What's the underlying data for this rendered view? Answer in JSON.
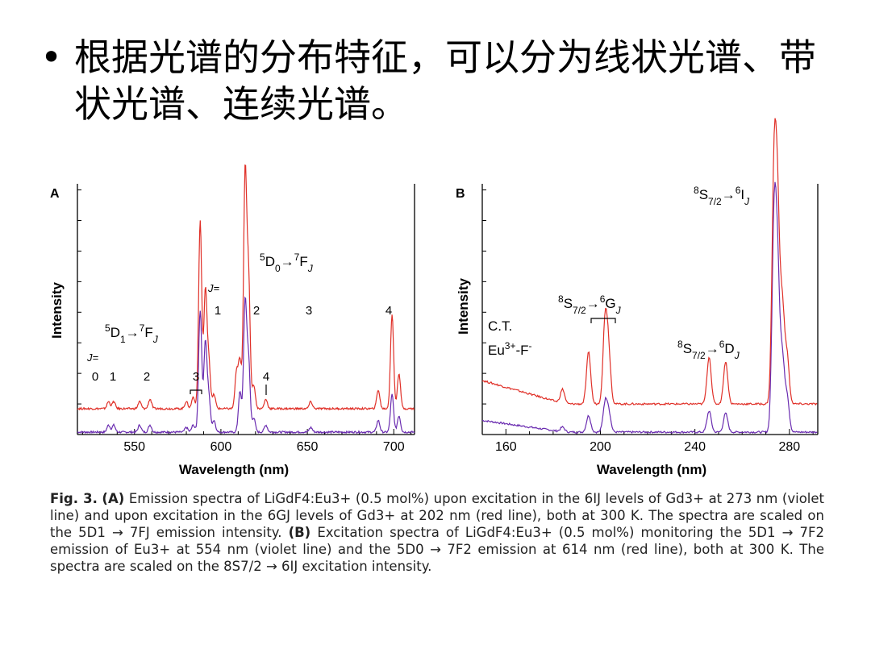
{
  "slide": {
    "bullet_marker": "•",
    "bullet_text": "根据光谱的分布特征，可以分为线状光谱、带状光谱、连续光谱。"
  },
  "colors": {
    "red": "#e03028",
    "violet": "#6a2cb0",
    "axis": "#000000"
  },
  "chart_data": [
    {
      "panel": "A",
      "type": "line",
      "xlabel": "Wavelength (nm)",
      "ylabel": "Intensity",
      "xlim": [
        517,
        712
      ],
      "ylim": [
        0,
        1
      ],
      "xticks": [
        550,
        600,
        650,
        700
      ],
      "series": [
        {
          "name": "violet line",
          "color": "#6a2cb0",
          "baseline": 0.0,
          "peaks": [
            [
              535,
              0.03
            ],
            [
              538,
              0.03
            ],
            [
              553,
              0.03
            ],
            [
              559,
              0.03
            ],
            [
              580,
              0.02
            ],
            [
              584,
              0.03
            ],
            [
              588,
              0.52
            ],
            [
              591,
              0.38
            ],
            [
              593,
              0.15
            ],
            [
              596,
              0.05
            ],
            [
              611,
              0.17
            ],
            [
              614,
              0.55
            ],
            [
              616,
              0.3
            ],
            [
              619,
              0.06
            ],
            [
              626,
              0.03
            ],
            [
              652,
              0.02
            ],
            [
              691,
              0.05
            ],
            [
              699,
              0.16
            ],
            [
              703,
              0.07
            ]
          ]
        },
        {
          "name": "red line",
          "color": "#e03028",
          "baseline": 0.1,
          "peaks": [
            [
              535,
              0.03
            ],
            [
              538,
              0.03
            ],
            [
              553,
              0.03
            ],
            [
              559,
              0.04
            ],
            [
              580,
              0.03
            ],
            [
              584,
              0.05
            ],
            [
              588,
              0.8
            ],
            [
              591,
              0.5
            ],
            [
              593,
              0.2
            ],
            [
              596,
              0.06
            ],
            [
              609,
              0.15
            ],
            [
              611,
              0.2
            ],
            [
              614,
              1.0
            ],
            [
              616,
              0.55
            ],
            [
              619,
              0.1
            ],
            [
              626,
              0.04
            ],
            [
              652,
              0.03
            ],
            [
              691,
              0.08
            ],
            [
              699,
              0.4
            ],
            [
              703,
              0.15
            ]
          ]
        }
      ],
      "annotations": {
        "t1_main": "5D1→7FJ",
        "t2_main": "5D0→7FJ",
        "j_eq": "J=",
        "j1": [
          "0",
          "1",
          "2",
          "3",
          "4"
        ],
        "j2": [
          "1",
          "2",
          "3",
          "4"
        ]
      }
    },
    {
      "panel": "B",
      "type": "line",
      "xlabel": "Wavelength (nm)",
      "ylabel": "Intensity",
      "xlim": [
        150,
        292
      ],
      "ylim": [
        0,
        1
      ],
      "xticks": [
        160,
        200,
        240,
        280
      ],
      "series": [
        {
          "name": "violet line",
          "color": "#6a2cb0",
          "baseline": 0.0,
          "peaks": [
            [
              184,
              0.02
            ],
            [
              195,
              0.07
            ],
            [
              202,
              0.12
            ],
            [
              203.5,
              0.08
            ],
            [
              246,
              0.09
            ],
            [
              253,
              0.08
            ],
            [
              273.5,
              0.85
            ],
            [
              275,
              0.62
            ],
            [
              277,
              0.3
            ],
            [
              279,
              0.15
            ]
          ]
        },
        {
          "name": "red line",
          "color": "#e03028",
          "baseline": 0.12,
          "peaks": [
            [
              184,
              0.06
            ],
            [
              195,
              0.22
            ],
            [
              202,
              0.35
            ],
            [
              203.5,
              0.2
            ],
            [
              246,
              0.2
            ],
            [
              253,
              0.18
            ],
            [
              273.5,
              0.95
            ],
            [
              275,
              0.75
            ],
            [
              277,
              0.4
            ],
            [
              279,
              0.2
            ]
          ]
        }
      ],
      "annotations": {
        "ct": "C.T.",
        "eu": "Eu3+-F-",
        "g": "8S7/2→6GJ",
        "d": "8S7/2→6DJ",
        "i": "8S7/2→6IJ"
      }
    }
  ],
  "caption": {
    "fig": "Fig. 3.",
    "A": "(A)",
    "part_a": " Emission spectra of LiGdF4:Eu3+ (0.5 mol%) upon excitation in the 6IJ levels of Gd3+ at 273 nm (violet line) and upon excitation in the 6GJ levels of Gd3+ at 202 nm (red line), both at 300 K. The spectra are scaled on the 5D1 → 7FJ emission intensity. ",
    "B": "(B)",
    "part_b": " Excitation spectra of LiGdF4:Eu3+ (0.5 mol%) monitoring the 5D1 → 7F2 emission of Eu3+ at 554 nm (violet line) and the 5D0 → 7F2 emission at 614 nm (red line), both at 300 K. The spectra are scaled on the 8S7/2 → 6IJ excitation intensity."
  }
}
